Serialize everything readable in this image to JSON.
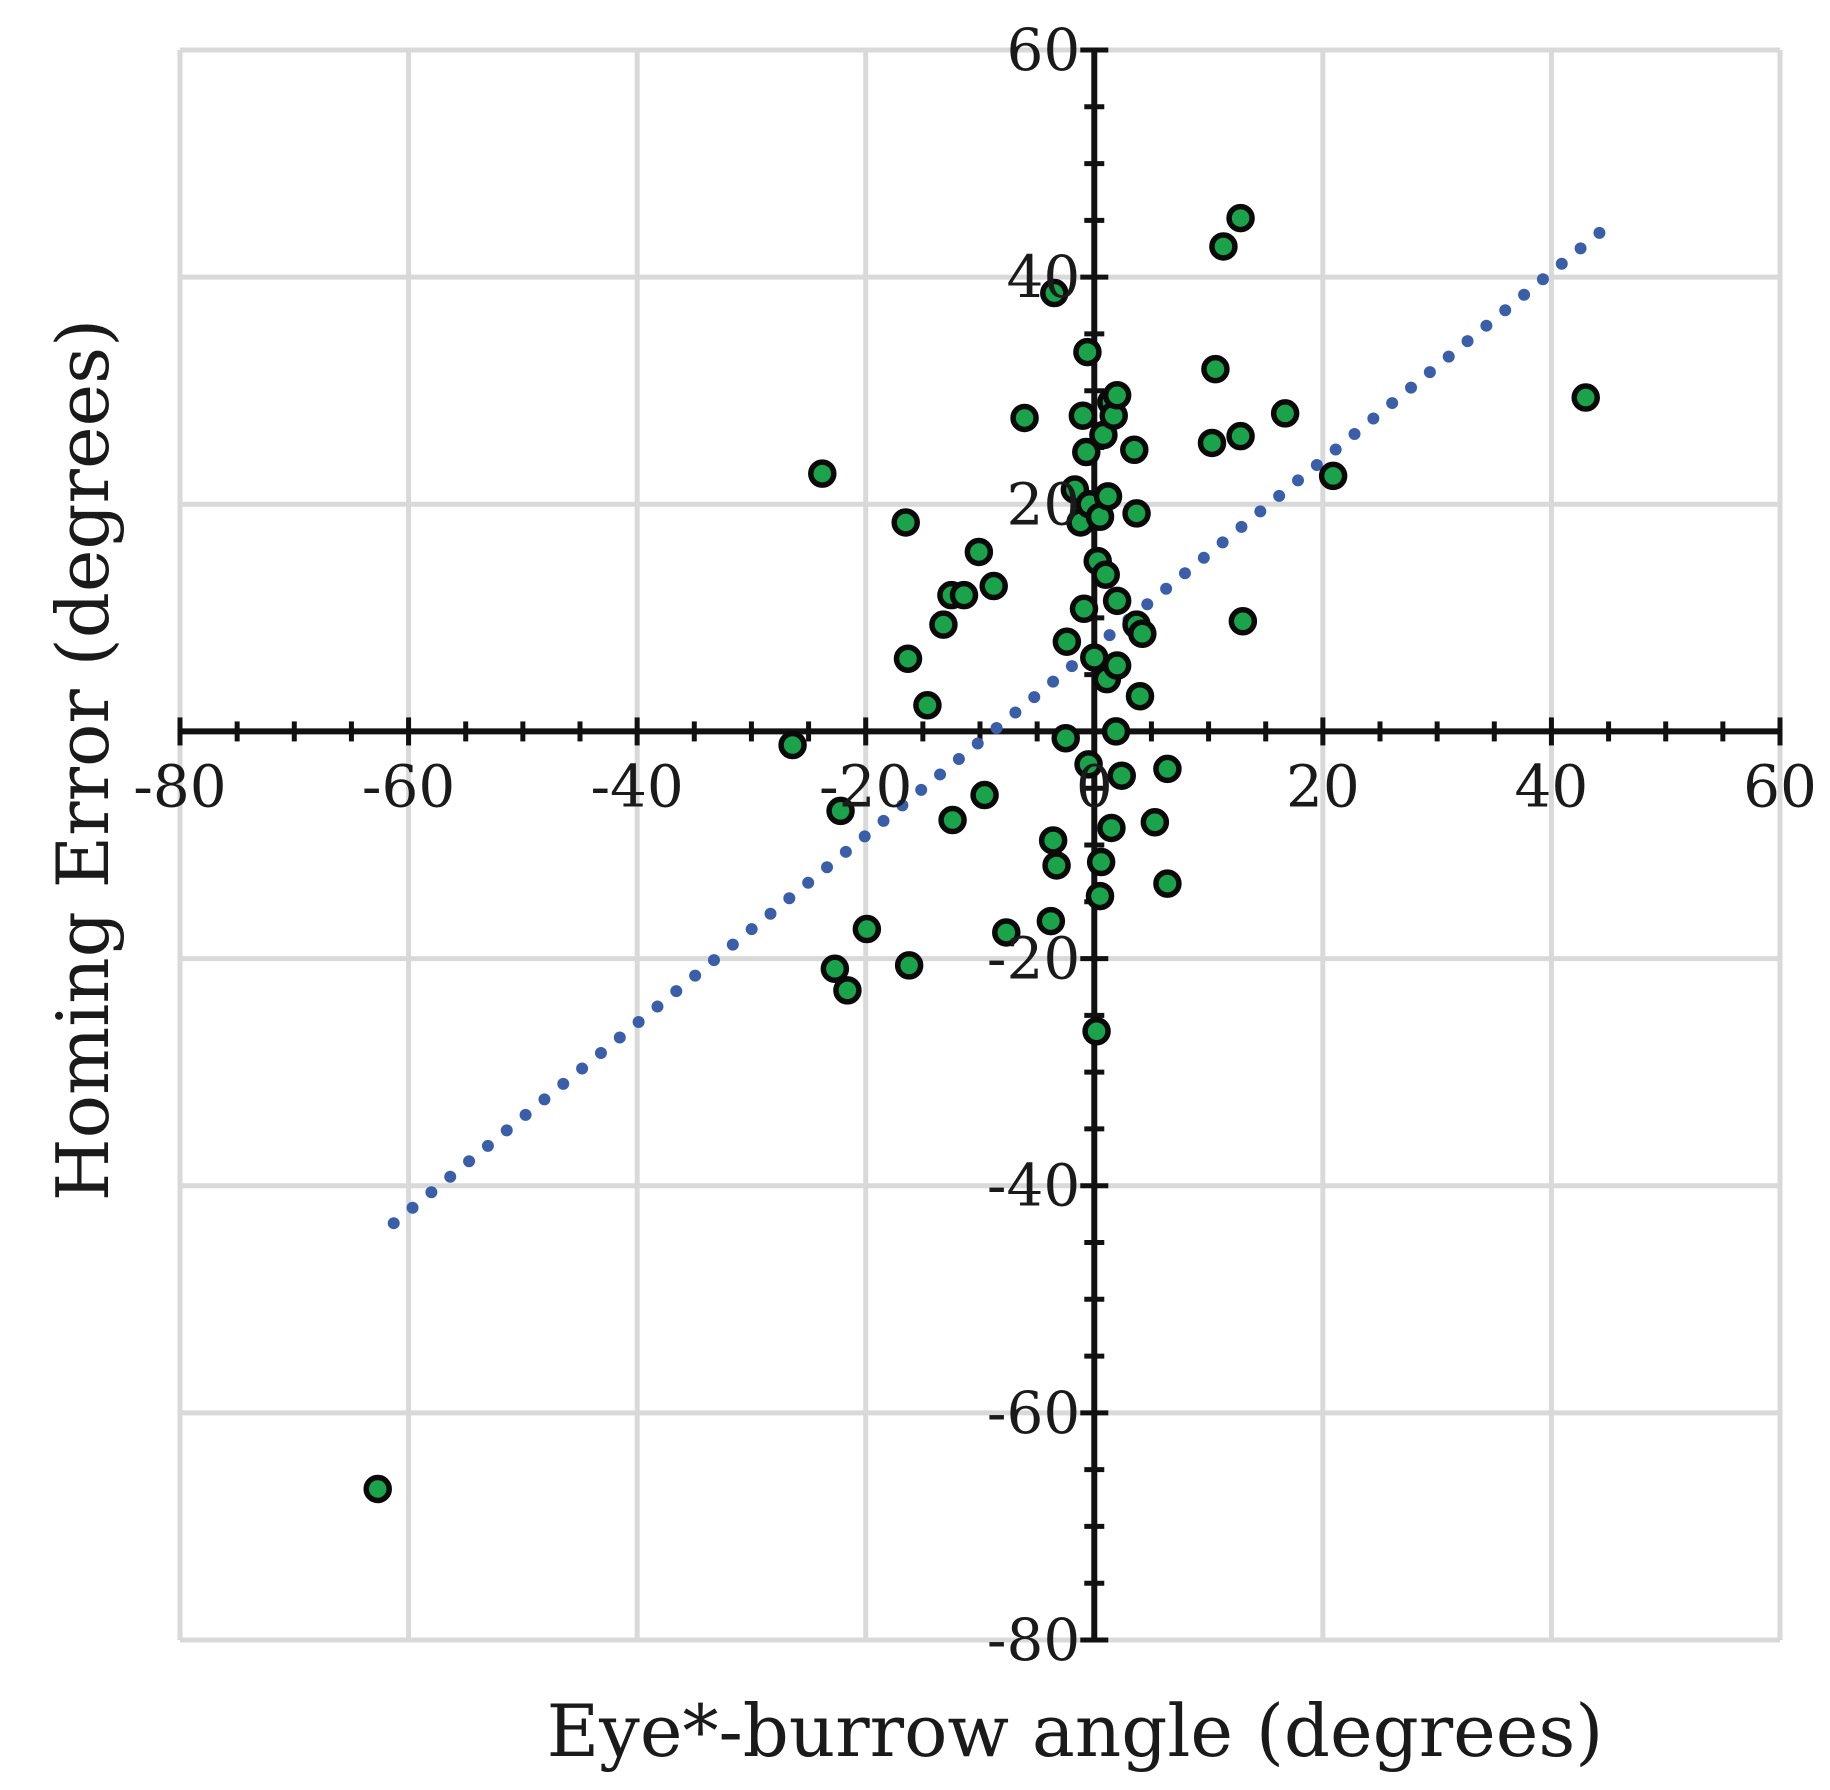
{
  "chart_data": {
    "type": "scatter",
    "title": "",
    "xlabel": "Eye*-burrow angle (degrees)",
    "ylabel": "Homing Error (degrees)",
    "xlim": [
      -80,
      60
    ],
    "ylim": [
      -80,
      60
    ],
    "x_ticks": [
      -80,
      -60,
      -40,
      -20,
      0,
      20,
      40,
      60
    ],
    "y_ticks": [
      -80,
      -60,
      -40,
      -20,
      20,
      40,
      60
    ],
    "x_tick_labels": [
      "-80",
      "-60",
      "-40",
      "-20",
      "0",
      "20",
      "40",
      "60"
    ],
    "y_tick_labels": [
      "-80",
      "-60",
      "-40",
      "-20",
      "20",
      "40",
      "60"
    ],
    "grid": true,
    "colors": {
      "point_fill": "#1aa34a",
      "point_edge": "#0a0a0a",
      "trend": "#3a5ea8",
      "grid": "#d9d9d9"
    },
    "series": [
      {
        "points": [
          [
            -62.7,
            -66.7
          ],
          [
            -26.4,
            -1.2
          ],
          [
            -23.8,
            22.7
          ],
          [
            -22.2,
            -7.0
          ],
          [
            -22.7,
            -20.9
          ],
          [
            -21.6,
            -22.8
          ],
          [
            -19.9,
            -17.4
          ],
          [
            -16.5,
            18.4
          ],
          [
            -16.3,
            6.4
          ],
          [
            -16.2,
            -20.6
          ],
          [
            -14.6,
            2.3
          ],
          [
            -13.2,
            9.4
          ],
          [
            -12.4,
            -7.8
          ],
          [
            -12.5,
            12.0
          ],
          [
            -11.4,
            12.0
          ],
          [
            -10.1,
            15.8
          ],
          [
            -9.6,
            -5.6
          ],
          [
            -8.8,
            12.8
          ],
          [
            -7.7,
            -17.7
          ],
          [
            -6.1,
            27.6
          ],
          [
            -3.5,
            38.6
          ],
          [
            -3.8,
            -16.7
          ],
          [
            -3.6,
            -9.6
          ],
          [
            -3.3,
            -11.8
          ],
          [
            -2.5,
            -0.6
          ],
          [
            -2.4,
            7.9
          ],
          [
            -1.7,
            21.3
          ],
          [
            -1.0,
            27.8
          ],
          [
            -1.2,
            18.4
          ],
          [
            -0.9,
            10.8
          ],
          [
            -0.7,
            24.6
          ],
          [
            -0.6,
            33.4
          ],
          [
            -0.4,
            20.0
          ],
          [
            -0.5,
            -2.9
          ],
          [
            0.0,
            6.5
          ],
          [
            0.3,
            15.0
          ],
          [
            0.5,
            18.9
          ],
          [
            0.6,
            -11.5
          ],
          [
            0.5,
            -14.5
          ],
          [
            0.2,
            -26.4
          ],
          [
            0.8,
            26.1
          ],
          [
            1.0,
            13.8
          ],
          [
            1.1,
            4.6
          ],
          [
            1.2,
            20.7
          ],
          [
            1.5,
            29.0
          ],
          [
            1.5,
            -8.5
          ],
          [
            1.7,
            27.8
          ],
          [
            1.9,
            0.0
          ],
          [
            2.0,
            29.6
          ],
          [
            2.0,
            11.5
          ],
          [
            2.0,
            5.8
          ],
          [
            2.4,
            -3.9
          ],
          [
            3.5,
            24.8
          ],
          [
            3.7,
            19.2
          ],
          [
            3.7,
            9.4
          ],
          [
            4.2,
            8.6
          ],
          [
            4.0,
            3.1
          ],
          [
            5.3,
            -8.0
          ],
          [
            6.4,
            -3.3
          ],
          [
            6.4,
            -13.4
          ],
          [
            10.3,
            25.4
          ],
          [
            10.6,
            31.9
          ],
          [
            11.3,
            42.7
          ],
          [
            12.8,
            45.2
          ],
          [
            12.8,
            26.0
          ],
          [
            13.0,
            9.7
          ],
          [
            16.7,
            28.0
          ],
          [
            20.9,
            22.5
          ],
          [
            43.0,
            29.4
          ]
        ]
      }
    ],
    "trendline": {
      "style": "dotted",
      "x_range": [
        -61.3,
        44.2
      ],
      "y_at_x_start": -43.3,
      "y_at_x_end": 43.9
    }
  }
}
